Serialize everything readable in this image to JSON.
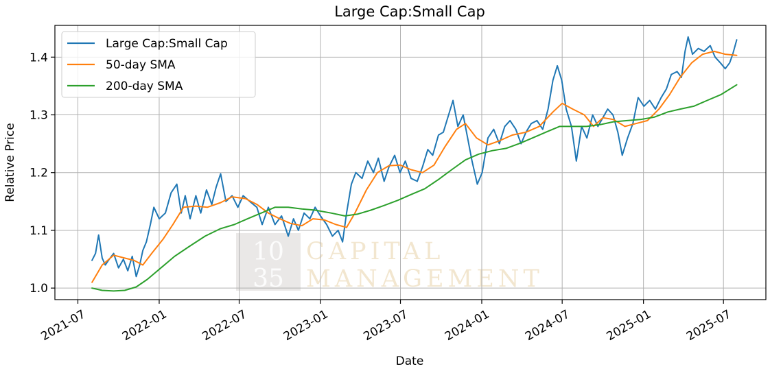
{
  "chart_data": {
    "type": "line",
    "title": "Large Cap:Small Cap",
    "xlabel": "Date",
    "ylabel": "Relative Price",
    "xlim": [
      "2021-05-10",
      "2025-10-05"
    ],
    "ylim": [
      0.98,
      1.455
    ],
    "grid": true,
    "legend_position": "top-left",
    "x_ticks": [
      {
        "date": "2021-07-01",
        "label": "2021-07"
      },
      {
        "date": "2022-01-01",
        "label": "2022-01"
      },
      {
        "date": "2022-07-01",
        "label": "2022-07"
      },
      {
        "date": "2023-01-01",
        "label": "2023-01"
      },
      {
        "date": "2023-07-01",
        "label": "2023-07"
      },
      {
        "date": "2024-01-01",
        "label": "2024-01"
      },
      {
        "date": "2024-07-01",
        "label": "2024-07"
      },
      {
        "date": "2025-01-01",
        "label": "2025-01"
      },
      {
        "date": "2025-07-01",
        "label": "2025-07"
      }
    ],
    "y_ticks": [
      {
        "value": 1.0,
        "label": "1.0"
      },
      {
        "value": 1.1,
        "label": "1.1"
      },
      {
        "value": 1.2,
        "label": "1.2"
      },
      {
        "value": 1.3,
        "label": "1.3"
      },
      {
        "value": 1.4,
        "label": "1.4"
      }
    ],
    "series": [
      {
        "name": "Large Cap:Small Cap",
        "color": "#1f77b4",
        "width": 2,
        "points": [
          [
            "2021-08-02",
            1.048
          ],
          [
            "2021-08-10",
            1.06
          ],
          [
            "2021-08-17",
            1.092
          ],
          [
            "2021-08-25",
            1.052
          ],
          [
            "2021-09-01",
            1.04
          ],
          [
            "2021-09-10",
            1.05
          ],
          [
            "2021-09-20",
            1.06
          ],
          [
            "2021-10-01",
            1.035
          ],
          [
            "2021-10-12",
            1.05
          ],
          [
            "2021-10-22",
            1.03
          ],
          [
            "2021-11-01",
            1.055
          ],
          [
            "2021-11-10",
            1.02
          ],
          [
            "2021-11-18",
            1.04
          ],
          [
            "2021-11-25",
            1.065
          ],
          [
            "2021-12-03",
            1.08
          ],
          [
            "2021-12-12",
            1.11
          ],
          [
            "2021-12-20",
            1.14
          ],
          [
            "2022-01-01",
            1.12
          ],
          [
            "2022-01-15",
            1.13
          ],
          [
            "2022-01-28",
            1.165
          ],
          [
            "2022-02-10",
            1.18
          ],
          [
            "2022-02-20",
            1.13
          ],
          [
            "2022-03-01",
            1.16
          ],
          [
            "2022-03-12",
            1.12
          ],
          [
            "2022-03-25",
            1.16
          ],
          [
            "2022-04-05",
            1.13
          ],
          [
            "2022-04-18",
            1.17
          ],
          [
            "2022-04-30",
            1.145
          ],
          [
            "2022-05-10",
            1.175
          ],
          [
            "2022-05-20",
            1.198
          ],
          [
            "2022-06-01",
            1.15
          ],
          [
            "2022-06-15",
            1.16
          ],
          [
            "2022-06-28",
            1.14
          ],
          [
            "2022-07-10",
            1.16
          ],
          [
            "2022-07-25",
            1.15
          ],
          [
            "2022-08-10",
            1.14
          ],
          [
            "2022-08-22",
            1.11
          ],
          [
            "2022-09-05",
            1.14
          ],
          [
            "2022-09-20",
            1.11
          ],
          [
            "2022-10-05",
            1.125
          ],
          [
            "2022-10-20",
            1.09
          ],
          [
            "2022-11-01",
            1.12
          ],
          [
            "2022-11-12",
            1.1
          ],
          [
            "2022-11-25",
            1.13
          ],
          [
            "2022-12-08",
            1.12
          ],
          [
            "2022-12-20",
            1.14
          ],
          [
            "2023-01-01",
            1.125
          ],
          [
            "2023-01-15",
            1.11
          ],
          [
            "2023-01-28",
            1.09
          ],
          [
            "2023-02-10",
            1.1
          ],
          [
            "2023-02-20",
            1.08
          ],
          [
            "2023-03-01",
            1.13
          ],
          [
            "2023-03-12",
            1.18
          ],
          [
            "2023-03-22",
            1.2
          ],
          [
            "2023-04-05",
            1.19
          ],
          [
            "2023-04-18",
            1.22
          ],
          [
            "2023-05-01",
            1.2
          ],
          [
            "2023-05-12",
            1.225
          ],
          [
            "2023-05-25",
            1.185
          ],
          [
            "2023-06-05",
            1.21
          ],
          [
            "2023-06-18",
            1.23
          ],
          [
            "2023-06-30",
            1.2
          ],
          [
            "2023-07-12",
            1.22
          ],
          [
            "2023-07-25",
            1.19
          ],
          [
            "2023-08-08",
            1.185
          ],
          [
            "2023-08-20",
            1.21
          ],
          [
            "2023-09-01",
            1.24
          ],
          [
            "2023-09-12",
            1.23
          ],
          [
            "2023-09-25",
            1.265
          ],
          [
            "2023-10-06",
            1.27
          ],
          [
            "2023-10-18",
            1.3
          ],
          [
            "2023-10-28",
            1.325
          ],
          [
            "2023-11-08",
            1.28
          ],
          [
            "2023-11-20",
            1.3
          ],
          [
            "2023-11-30",
            1.26
          ],
          [
            "2023-12-10",
            1.22
          ],
          [
            "2023-12-22",
            1.18
          ],
          [
            "2024-01-02",
            1.2
          ],
          [
            "2024-01-15",
            1.26
          ],
          [
            "2024-01-28",
            1.275
          ],
          [
            "2024-02-10",
            1.25
          ],
          [
            "2024-02-22",
            1.28
          ],
          [
            "2024-03-05",
            1.29
          ],
          [
            "2024-03-18",
            1.275
          ],
          [
            "2024-03-30",
            1.25
          ],
          [
            "2024-04-10",
            1.27
          ],
          [
            "2024-04-22",
            1.285
          ],
          [
            "2024-05-05",
            1.29
          ],
          [
            "2024-05-18",
            1.275
          ],
          [
            "2024-05-30",
            1.31
          ],
          [
            "2024-06-10",
            1.36
          ],
          [
            "2024-06-20",
            1.385
          ],
          [
            "2024-06-30",
            1.36
          ],
          [
            "2024-07-10",
            1.31
          ],
          [
            "2024-07-22",
            1.28
          ],
          [
            "2024-08-02",
            1.22
          ],
          [
            "2024-08-14",
            1.28
          ],
          [
            "2024-08-26",
            1.26
          ],
          [
            "2024-09-08",
            1.3
          ],
          [
            "2024-09-20",
            1.28
          ],
          [
            "2024-10-01",
            1.295
          ],
          [
            "2024-10-12",
            1.31
          ],
          [
            "2024-10-24",
            1.3
          ],
          [
            "2024-11-04",
            1.27
          ],
          [
            "2024-11-14",
            1.23
          ],
          [
            "2024-11-26",
            1.26
          ],
          [
            "2024-12-08",
            1.285
          ],
          [
            "2024-12-20",
            1.33
          ],
          [
            "2025-01-02",
            1.315
          ],
          [
            "2025-01-15",
            1.325
          ],
          [
            "2025-01-28",
            1.31
          ],
          [
            "2025-02-10",
            1.33
          ],
          [
            "2025-02-22",
            1.345
          ],
          [
            "2025-03-05",
            1.37
          ],
          [
            "2025-03-18",
            1.375
          ],
          [
            "2025-03-28",
            1.365
          ],
          [
            "2025-04-05",
            1.41
          ],
          [
            "2025-04-12",
            1.435
          ],
          [
            "2025-04-22",
            1.405
          ],
          [
            "2025-05-05",
            1.415
          ],
          [
            "2025-05-18",
            1.41
          ],
          [
            "2025-06-01",
            1.42
          ],
          [
            "2025-06-12",
            1.4
          ],
          [
            "2025-06-24",
            1.39
          ],
          [
            "2025-07-05",
            1.38
          ],
          [
            "2025-07-15",
            1.39
          ],
          [
            "2025-07-22",
            1.405
          ],
          [
            "2025-07-31",
            1.43
          ]
        ]
      },
      {
        "name": "50-day SMA",
        "color": "#ff7f0e",
        "width": 2,
        "points": [
          [
            "2021-08-02",
            1.01
          ],
          [
            "2021-08-25",
            1.04
          ],
          [
            "2021-09-20",
            1.057
          ],
          [
            "2021-10-15",
            1.052
          ],
          [
            "2021-11-05",
            1.048
          ],
          [
            "2021-11-25",
            1.04
          ],
          [
            "2021-12-15",
            1.06
          ],
          [
            "2022-01-10",
            1.085
          ],
          [
            "2022-02-01",
            1.11
          ],
          [
            "2022-02-25",
            1.14
          ],
          [
            "2022-03-25",
            1.142
          ],
          [
            "2022-04-20",
            1.14
          ],
          [
            "2022-05-20",
            1.148
          ],
          [
            "2022-06-15",
            1.158
          ],
          [
            "2022-07-15",
            1.155
          ],
          [
            "2022-08-10",
            1.145
          ],
          [
            "2022-09-05",
            1.13
          ],
          [
            "2022-10-01",
            1.12
          ],
          [
            "2022-10-25",
            1.112
          ],
          [
            "2022-11-20",
            1.108
          ],
          [
            "2022-12-15",
            1.12
          ],
          [
            "2023-01-10",
            1.118
          ],
          [
            "2023-02-05",
            1.11
          ],
          [
            "2023-03-01",
            1.105
          ],
          [
            "2023-03-20",
            1.13
          ],
          [
            "2023-04-15",
            1.17
          ],
          [
            "2023-05-10",
            1.2
          ],
          [
            "2023-06-05",
            1.212
          ],
          [
            "2023-07-01",
            1.213
          ],
          [
            "2023-07-25",
            1.205
          ],
          [
            "2023-08-20",
            1.2
          ],
          [
            "2023-09-15",
            1.213
          ],
          [
            "2023-10-10",
            1.245
          ],
          [
            "2023-11-05",
            1.275
          ],
          [
            "2023-11-25",
            1.285
          ],
          [
            "2023-12-20",
            1.26
          ],
          [
            "2024-01-15",
            1.248
          ],
          [
            "2024-02-10",
            1.255
          ],
          [
            "2024-03-10",
            1.265
          ],
          [
            "2024-04-10",
            1.27
          ],
          [
            "2024-05-10",
            1.28
          ],
          [
            "2024-06-10",
            1.305
          ],
          [
            "2024-07-01",
            1.32
          ],
          [
            "2024-07-25",
            1.31
          ],
          [
            "2024-08-20",
            1.3
          ],
          [
            "2024-09-10",
            1.28
          ],
          [
            "2024-10-01",
            1.295
          ],
          [
            "2024-10-25",
            1.292
          ],
          [
            "2024-11-20",
            1.28
          ],
          [
            "2024-12-15",
            1.285
          ],
          [
            "2025-01-10",
            1.29
          ],
          [
            "2025-02-05",
            1.31
          ],
          [
            "2025-03-01",
            1.335
          ],
          [
            "2025-03-25",
            1.365
          ],
          [
            "2025-04-20",
            1.39
          ],
          [
            "2025-05-15",
            1.405
          ],
          [
            "2025-06-10",
            1.41
          ],
          [
            "2025-07-05",
            1.405
          ],
          [
            "2025-07-31",
            1.403
          ]
        ]
      },
      {
        "name": "200-day SMA",
        "color": "#2ca02c",
        "width": 2,
        "points": [
          [
            "2021-08-02",
            1.0
          ],
          [
            "2021-08-25",
            0.996
          ],
          [
            "2021-09-20",
            0.995
          ],
          [
            "2021-10-15",
            0.996
          ],
          [
            "2021-11-10",
            1.002
          ],
          [
            "2021-12-05",
            1.015
          ],
          [
            "2022-01-05",
            1.035
          ],
          [
            "2022-02-05",
            1.055
          ],
          [
            "2022-03-10",
            1.072
          ],
          [
            "2022-04-15",
            1.09
          ],
          [
            "2022-05-20",
            1.103
          ],
          [
            "2022-06-20",
            1.11
          ],
          [
            "2022-07-20",
            1.12
          ],
          [
            "2022-08-20",
            1.13
          ],
          [
            "2022-09-20",
            1.14
          ],
          [
            "2022-10-20",
            1.14
          ],
          [
            "2022-11-20",
            1.137
          ],
          [
            "2022-12-20",
            1.135
          ],
          [
            "2023-01-25",
            1.13
          ],
          [
            "2023-02-25",
            1.125
          ],
          [
            "2023-03-25",
            1.128
          ],
          [
            "2023-04-25",
            1.135
          ],
          [
            "2023-05-25",
            1.143
          ],
          [
            "2023-06-25",
            1.152
          ],
          [
            "2023-07-25",
            1.162
          ],
          [
            "2023-08-25",
            1.172
          ],
          [
            "2023-09-25",
            1.188
          ],
          [
            "2023-10-25",
            1.205
          ],
          [
            "2023-11-25",
            1.222
          ],
          [
            "2023-12-25",
            1.232
          ],
          [
            "2024-01-25",
            1.238
          ],
          [
            "2024-02-25",
            1.242
          ],
          [
            "2024-03-25",
            1.25
          ],
          [
            "2024-04-25",
            1.26
          ],
          [
            "2024-05-25",
            1.27
          ],
          [
            "2024-06-25",
            1.28
          ],
          [
            "2024-07-25",
            1.28
          ],
          [
            "2024-08-25",
            1.28
          ],
          [
            "2024-09-25",
            1.283
          ],
          [
            "2024-10-25",
            1.288
          ],
          [
            "2024-11-25",
            1.29
          ],
          [
            "2024-12-25",
            1.292
          ],
          [
            "2025-01-25",
            1.296
          ],
          [
            "2025-02-25",
            1.305
          ],
          [
            "2025-03-25",
            1.31
          ],
          [
            "2025-04-25",
            1.315
          ],
          [
            "2025-05-25",
            1.325
          ],
          [
            "2025-06-25",
            1.335
          ],
          [
            "2025-07-31",
            1.352
          ]
        ]
      }
    ]
  },
  "watermark": {
    "number_top": "10",
    "number_bottom": "35",
    "line1": "CAPITAL",
    "line2": "MANAGEMENT"
  }
}
